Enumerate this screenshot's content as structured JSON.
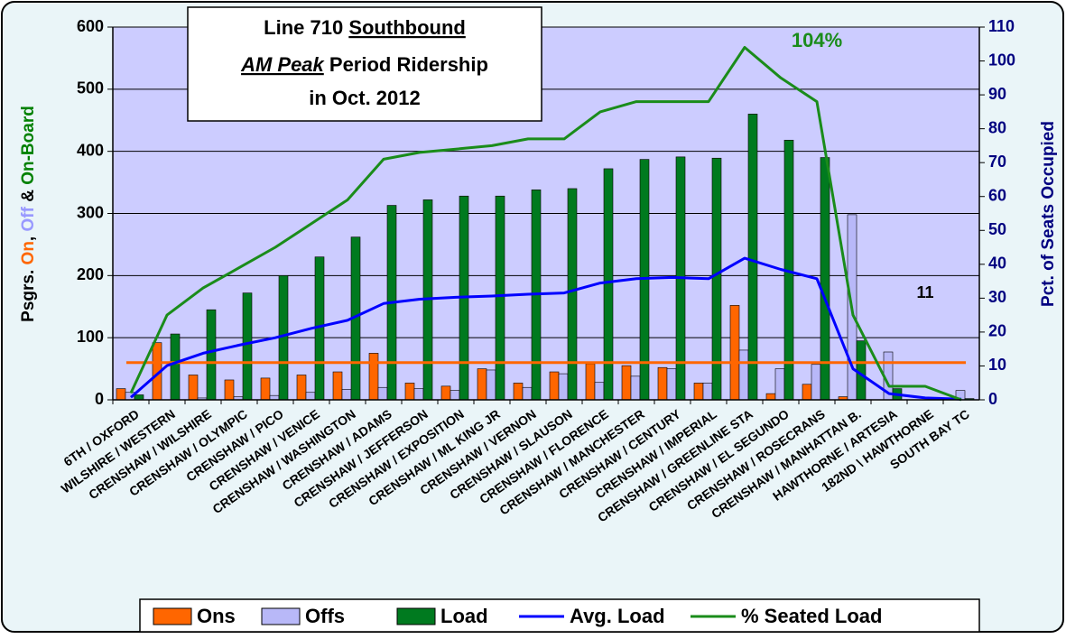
{
  "chart_data": {
    "type": "bar",
    "title_lines": [
      [
        "Line 710 ",
        "Southbound"
      ],
      [
        "AM Peak",
        " Period Ridership"
      ],
      [
        "in Oct. 2012"
      ]
    ],
    "ylabel_parts": [
      "Psgrs. ",
      "On",
      ", ",
      "Off",
      " & ",
      "On-Board"
    ],
    "ylabel_colors": [
      "#000000",
      "#ff6600",
      "#000000",
      "#9999ff",
      "#000000",
      "#008000"
    ],
    "y2label": "Pct. of Seats Occupied",
    "categories": [
      "6TH / OXFORD",
      "WILSHIRE / WESTERN",
      "CRENSHAW / WILSHIRE",
      "CRENSHAW / OLYMPIC",
      "CRENSHAW / PICO",
      "CRENSHAW / VENICE",
      "CRENSHAW / WASHINGTON",
      "CRENSHAW / ADAMS",
      "CRENSHAW / JEFFERSON",
      "CRENSHAW / EXPOSITION",
      "CRENSHAW / ML KING JR",
      "CRENSHAW / VERNON",
      "CRENSHAW / SLAUSON",
      "CRENSHAW / FLORENCE",
      "CRENSHAW / MANCHESTER",
      "CRENSHAW / CENTURY",
      "CRENSHAW / IMPERIAL",
      "CRENSHAW / GREENLINE STA",
      "CRENSHAW / EL SEGUNDO",
      "CRENSHAW / ROSECRANS",
      "CRENSHAW / MANHATTAN B.",
      "HAWTHORNE / ARTESIA",
      "182ND \\ HAWTHORNE",
      "SOUTH BAY TC"
    ],
    "series": [
      {
        "name": "Ons",
        "kind": "bar",
        "color": "#ff6600",
        "values": [
          18,
          92,
          40,
          32,
          35,
          40,
          45,
          75,
          27,
          22,
          50,
          27,
          45,
          58,
          55,
          52,
          27,
          152,
          10,
          25,
          5,
          0,
          0,
          0
        ]
      },
      {
        "name": "Offs",
        "kind": "bar",
        "color": "#b8b8f8",
        "values": [
          12,
          0,
          3,
          5,
          7,
          12,
          17,
          20,
          18,
          15,
          48,
          20,
          42,
          28,
          38,
          50,
          27,
          80,
          50,
          57,
          298,
          77,
          0,
          15
        ]
      },
      {
        "name": "Load",
        "kind": "bar",
        "color": "#007a1f",
        "values": [
          8,
          106,
          145,
          172,
          200,
          230,
          262,
          313,
          322,
          328,
          328,
          338,
          340,
          372,
          387,
          391,
          389,
          460,
          418,
          390,
          95,
          18,
          3,
          2
        ]
      },
      {
        "name": "Avg. Load",
        "kind": "line",
        "color": "#0000ff",
        "values": [
          4,
          55,
          75,
          88,
          100,
          115,
          128,
          155,
          162,
          165,
          167,
          170,
          172,
          188,
          195,
          197,
          195,
          228,
          210,
          195,
          50,
          10,
          3,
          1
        ]
      },
      {
        "name": "% Seated Load",
        "kind": "line",
        "axis": "y2",
        "color": "#1a8c1a",
        "values": [
          2,
          25,
          33,
          39,
          45,
          52,
          59,
          71,
          73,
          74,
          75,
          77,
          77,
          85,
          88,
          88,
          88,
          104,
          95,
          88,
          25,
          4,
          4,
          0
        ]
      }
    ],
    "reference_value": 11,
    "reference_color": "#ff6600",
    "annotation": "104%",
    "ylim": [
      0,
      600
    ],
    "yticks": [
      0,
      100,
      200,
      300,
      400,
      500,
      600
    ],
    "y2lim": [
      0,
      110
    ],
    "y2ticks": [
      0,
      10,
      20,
      30,
      40,
      50,
      60,
      70,
      80,
      90,
      100,
      110
    ],
    "legend": "bottom"
  }
}
